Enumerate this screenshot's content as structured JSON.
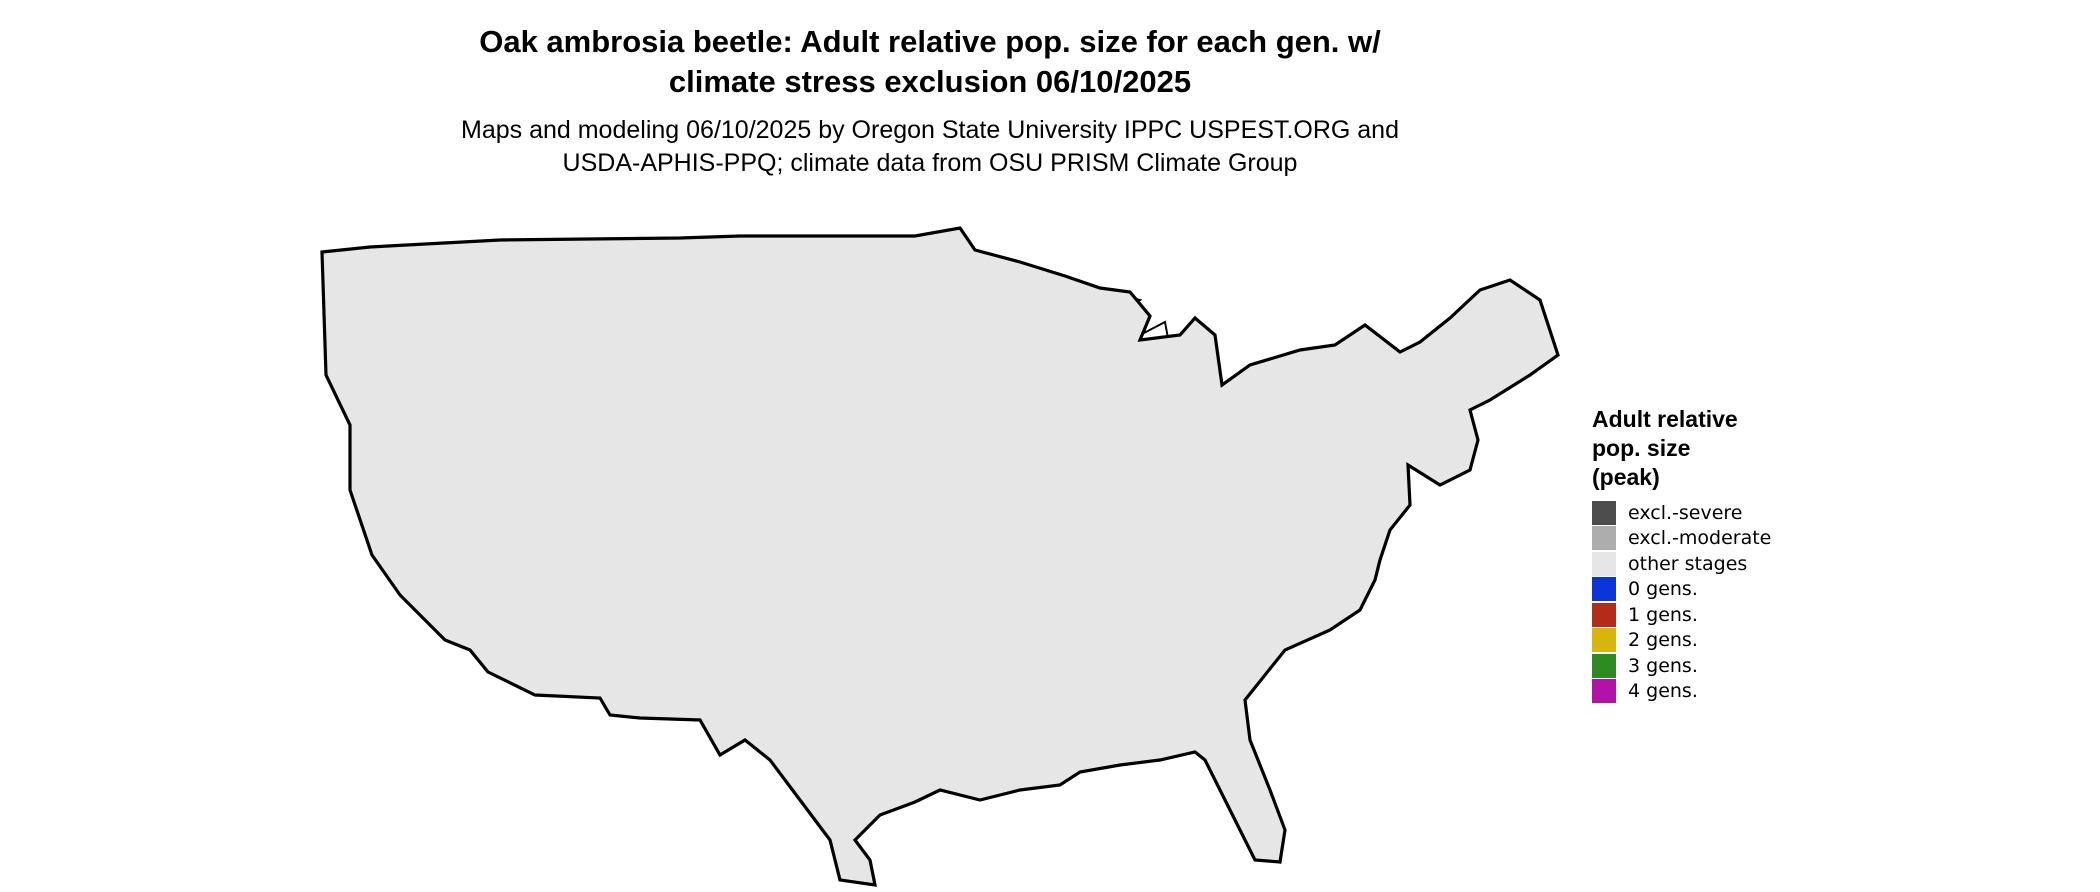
{
  "title_line1": "Oak ambrosia beetle: Adult relative pop. size for each gen. w/",
  "title_line2": "climate stress exclusion 06/10/2025",
  "subtitle_line1": "Maps and modeling 06/10/2025 by Oregon State University IPPC USPEST.ORG and",
  "subtitle_line2": "USDA-APHIS-PPQ; climate data from OSU PRISM Climate Group",
  "legend": {
    "title_line1": "Adult relative",
    "title_line2": "pop. size",
    "title_line3": "(peak)",
    "items": [
      {
        "label": "excl.-severe",
        "color": "#4d4d4d"
      },
      {
        "label": "excl.-moderate",
        "color": "#adadad"
      },
      {
        "label": "other stages",
        "color": "#e6e6e6"
      },
      {
        "label": "0 gens.",
        "color": "#0b35d9"
      },
      {
        "label": "1 gens.",
        "color": "#b42b1a"
      },
      {
        "label": "2 gens.",
        "color": "#d8b50c"
      },
      {
        "label": "3 gens.",
        "color": "#2e8b22"
      },
      {
        "label": "4 gens.",
        "color": "#b312a8"
      }
    ]
  },
  "map_colors": {
    "outline": "#000000",
    "background": "#e6e6e6",
    "severe": "#4d4d4d",
    "moderate": "#adadad",
    "light_blue": "#00b7f1",
    "mid_blue": "#0563e0",
    "dark_blue": "#0000c8",
    "red_spots": "#ff3300"
  }
}
